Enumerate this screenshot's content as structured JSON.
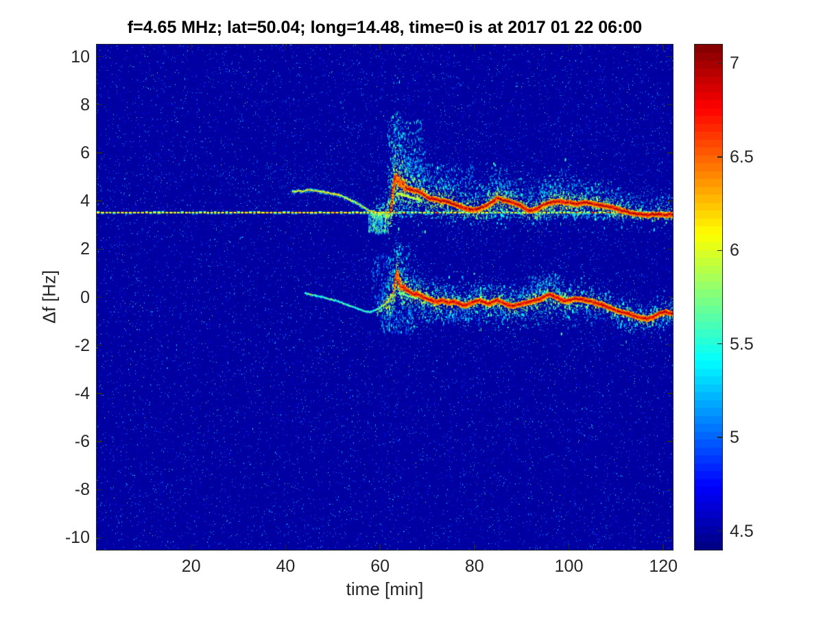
{
  "figure": {
    "background": "#ffffff",
    "axis_color": "#262626",
    "title_color": "#000000"
  },
  "chart_data": {
    "type": "heatmap",
    "subtype": "doppler-spectrogram",
    "title": "f=4.65 MHz;  lat=50.04; long=14.48, time=0 is at 2017 01 22 06:00",
    "xlabel": "time [min]",
    "ylabel": "Δf [Hz]",
    "xlim": [
      0,
      122
    ],
    "ylim": [
      -10.5,
      10.5
    ],
    "x_ticks": [
      20,
      40,
      60,
      80,
      100,
      120
    ],
    "y_ticks": [
      10,
      8,
      6,
      4,
      2,
      0,
      -2,
      -4,
      -6,
      -8,
      -10
    ],
    "colormap": "jet",
    "clim": [
      4.4,
      7.1
    ],
    "colorbar_ticks": [
      7,
      6.5,
      6,
      5.5,
      5,
      4.5
    ],
    "colorbar_position": "right",
    "noise_floor": 4.5,
    "reference_line": {
      "delta_f_hz": 3.52,
      "style": "dashed",
      "value": 6.05
    },
    "upper_trace_pre": [
      [
        41.3,
        4.38
      ],
      [
        42.5,
        4.42
      ],
      [
        43.5,
        4.4
      ],
      [
        44.5,
        4.47
      ],
      [
        45.5,
        4.44
      ],
      [
        46.5,
        4.42
      ],
      [
        47.5,
        4.38
      ],
      [
        48.5,
        4.35
      ],
      [
        49.5,
        4.31
      ],
      [
        50.5,
        4.28
      ],
      [
        51.5,
        4.23
      ],
      [
        52.5,
        4.14
      ],
      [
        53.5,
        4.04
      ],
      [
        54.5,
        3.96
      ],
      [
        55.5,
        3.86
      ],
      [
        56.5,
        3.73
      ],
      [
        57.5,
        3.61
      ],
      [
        58.7,
        3.55
      ]
    ],
    "upper_trace": [
      [
        62.2,
        3.6
      ],
      [
        62.6,
        4.3
      ],
      [
        63.0,
        4.9
      ],
      [
        63.3,
        5.05
      ],
      [
        63.6,
        4.8
      ],
      [
        64.0,
        4.88
      ],
      [
        64.4,
        4.68
      ],
      [
        64.8,
        4.72
      ],
      [
        65.2,
        4.6
      ],
      [
        65.8,
        4.52
      ],
      [
        66.5,
        4.47
      ],
      [
        67.2,
        4.44
      ],
      [
        68.0,
        4.42
      ],
      [
        68.8,
        4.33
      ],
      [
        69.6,
        4.22
      ],
      [
        70.4,
        4.12
      ],
      [
        71.2,
        4.1
      ],
      [
        72.0,
        4.08
      ],
      [
        72.8,
        4.0
      ],
      [
        73.6,
        4.0
      ],
      [
        74.4,
        3.97
      ],
      [
        75.2,
        3.91
      ],
      [
        76.0,
        3.85
      ],
      [
        77.0,
        3.77
      ],
      [
        78.0,
        3.7
      ],
      [
        78.8,
        3.66
      ],
      [
        79.6,
        3.64
      ],
      [
        80.5,
        3.66
      ],
      [
        81.5,
        3.72
      ],
      [
        82.5,
        3.8
      ],
      [
        83.5,
        3.92
      ],
      [
        84.4,
        4.03
      ],
      [
        84.9,
        4.14
      ],
      [
        85.4,
        4.08
      ],
      [
        86.2,
        4.03
      ],
      [
        87.3,
        3.99
      ],
      [
        88.2,
        3.93
      ],
      [
        89.2,
        3.86
      ],
      [
        90.2,
        3.76
      ],
      [
        91.0,
        3.66
      ],
      [
        91.7,
        3.6
      ],
      [
        92.5,
        3.63
      ],
      [
        93.2,
        3.66
      ],
      [
        94.0,
        3.76
      ],
      [
        94.6,
        3.85
      ],
      [
        95.4,
        3.9
      ],
      [
        96.1,
        3.94
      ],
      [
        97.0,
        3.97
      ],
      [
        98.0,
        4.0
      ],
      [
        99.0,
        3.95
      ],
      [
        100.0,
        3.94
      ],
      [
        101.0,
        3.9
      ],
      [
        101.9,
        3.89
      ],
      [
        102.9,
        3.93
      ],
      [
        103.8,
        3.94
      ],
      [
        104.8,
        3.9
      ],
      [
        105.8,
        3.85
      ],
      [
        106.8,
        3.82
      ],
      [
        107.7,
        3.8
      ],
      [
        108.6,
        3.76
      ],
      [
        109.6,
        3.71
      ],
      [
        110.6,
        3.65
      ],
      [
        111.6,
        3.6
      ],
      [
        112.3,
        3.56
      ],
      [
        113.0,
        3.52
      ],
      [
        114.0,
        3.48
      ],
      [
        115.0,
        3.46
      ],
      [
        116.0,
        3.43
      ],
      [
        116.9,
        3.43
      ],
      [
        117.8,
        3.46
      ],
      [
        118.5,
        3.43
      ],
      [
        119.3,
        3.47
      ],
      [
        120.0,
        3.42
      ],
      [
        120.8,
        3.43
      ],
      [
        121.4,
        3.46
      ],
      [
        121.9,
        3.42
      ]
    ],
    "lower_trace_pre": [
      [
        44.0,
        0.18
      ],
      [
        45.0,
        0.12
      ],
      [
        46.0,
        0.08
      ],
      [
        47.2,
        0.02
      ],
      [
        48.5,
        -0.04
      ],
      [
        49.5,
        -0.09
      ],
      [
        50.5,
        -0.14
      ],
      [
        51.5,
        -0.21
      ],
      [
        52.4,
        -0.28
      ],
      [
        53.4,
        -0.35
      ],
      [
        54.4,
        -0.42
      ],
      [
        55.4,
        -0.5
      ],
      [
        56.3,
        -0.57
      ],
      [
        57.0,
        -0.6
      ],
      [
        57.8,
        -0.62
      ],
      [
        58.5,
        -0.58
      ],
      [
        59.2,
        -0.52
      ],
      [
        59.9,
        -0.44
      ],
      [
        60.5,
        -0.35
      ],
      [
        61.1,
        -0.26
      ],
      [
        61.6,
        -0.15
      ],
      [
        62.1,
        -0.02
      ],
      [
        62.6,
        0.15
      ],
      [
        63.0,
        0.35
      ]
    ],
    "lower_trace": [
      [
        63.1,
        0.5
      ],
      [
        63.5,
        1.08
      ],
      [
        63.8,
        0.78
      ],
      [
        64.2,
        0.52
      ],
      [
        64.6,
        0.4
      ],
      [
        65.0,
        0.44
      ],
      [
        65.5,
        0.32
      ],
      [
        66.0,
        0.28
      ],
      [
        66.6,
        0.2
      ],
      [
        67.2,
        0.12
      ],
      [
        67.8,
        0.16
      ],
      [
        68.4,
        0.1
      ],
      [
        69.0,
        0.02
      ],
      [
        69.8,
        -0.04
      ],
      [
        70.6,
        -0.1
      ],
      [
        71.4,
        -0.16
      ],
      [
        72.2,
        -0.2
      ],
      [
        73.0,
        -0.12
      ],
      [
        73.8,
        -0.17
      ],
      [
        74.6,
        -0.22
      ],
      [
        75.4,
        -0.18
      ],
      [
        76.2,
        -0.23
      ],
      [
        77.0,
        -0.28
      ],
      [
        78.0,
        -0.34
      ],
      [
        79.0,
        -0.26
      ],
      [
        80.0,
        -0.18
      ],
      [
        81.0,
        -0.13
      ],
      [
        82.0,
        -0.21
      ],
      [
        83.0,
        -0.27
      ],
      [
        84.0,
        -0.18
      ],
      [
        85.0,
        -0.12
      ],
      [
        86.0,
        -0.22
      ],
      [
        87.0,
        -0.32
      ],
      [
        88.0,
        -0.37
      ],
      [
        89.0,
        -0.31
      ],
      [
        90.0,
        -0.27
      ],
      [
        91.0,
        -0.22
      ],
      [
        92.0,
        -0.17
      ],
      [
        93.0,
        -0.12
      ],
      [
        94.0,
        -0.07
      ],
      [
        95.0,
        0.04
      ],
      [
        96.0,
        0.12
      ],
      [
        96.8,
        0.05
      ],
      [
        97.6,
        -0.02
      ],
      [
        98.4,
        -0.1
      ],
      [
        99.2,
        -0.16
      ],
      [
        100.0,
        -0.12
      ],
      [
        101.0,
        -0.08
      ],
      [
        102.0,
        -0.06
      ],
      [
        103.0,
        -0.1
      ],
      [
        104.0,
        -0.15
      ],
      [
        105.0,
        -0.2
      ],
      [
        106.0,
        -0.26
      ],
      [
        107.0,
        -0.3
      ],
      [
        108.0,
        -0.39
      ],
      [
        109.0,
        -0.47
      ],
      [
        110.0,
        -0.55
      ],
      [
        111.0,
        -0.6
      ],
      [
        112.0,
        -0.65
      ],
      [
        113.0,
        -0.71
      ],
      [
        114.0,
        -0.78
      ],
      [
        115.0,
        -0.84
      ],
      [
        116.0,
        -0.88
      ],
      [
        116.6,
        -0.9
      ],
      [
        117.4,
        -0.86
      ],
      [
        118.2,
        -0.78
      ],
      [
        119.0,
        -0.7
      ],
      [
        119.8,
        -0.63
      ],
      [
        120.6,
        -0.6
      ],
      [
        121.2,
        -0.64
      ],
      [
        121.9,
        -0.67
      ]
    ],
    "upper_secondary": [
      [
        63.5,
        4.35
      ],
      [
        64.5,
        4.28
      ],
      [
        65.5,
        4.22
      ],
      [
        66.5,
        4.17
      ],
      [
        67.5,
        4.12
      ],
      [
        68.5,
        4.08
      ]
    ],
    "lower_secondary": [
      [
        63.8,
        0.2
      ],
      [
        64.8,
        0.16
      ],
      [
        65.8,
        0.08
      ],
      [
        66.8,
        0.02
      ],
      [
        67.8,
        -0.04
      ]
    ],
    "upper_spread": [
      [
        58,
        0.15
      ],
      [
        61,
        0.35
      ],
      [
        62,
        1.3
      ],
      [
        63,
        2.2
      ],
      [
        63.5,
        2.4
      ],
      [
        64,
        1.8
      ],
      [
        65,
        1.1
      ],
      [
        67,
        0.9
      ],
      [
        70,
        0.75
      ],
      [
        75,
        0.6
      ],
      [
        80,
        0.55
      ],
      [
        84,
        0.65
      ],
      [
        87,
        0.6
      ],
      [
        90,
        0.5
      ],
      [
        95,
        0.6
      ],
      [
        100,
        0.55
      ],
      [
        104,
        0.5
      ],
      [
        110,
        0.45
      ],
      [
        115,
        0.4
      ],
      [
        122,
        0.38
      ]
    ],
    "upper_density": [
      [
        58,
        2
      ],
      [
        61,
        5
      ],
      [
        62,
        16
      ],
      [
        63,
        22
      ],
      [
        63.5,
        24
      ],
      [
        64,
        18
      ],
      [
        65,
        13
      ],
      [
        67,
        10
      ],
      [
        70,
        8
      ],
      [
        75,
        6
      ],
      [
        80,
        6
      ],
      [
        84,
        9
      ],
      [
        87,
        8
      ],
      [
        90,
        6
      ],
      [
        95,
        8
      ],
      [
        100,
        8
      ],
      [
        103,
        7
      ],
      [
        107,
        6
      ],
      [
        110,
        5
      ],
      [
        115,
        4
      ],
      [
        122,
        4
      ]
    ],
    "lower_spread": [
      [
        59,
        0.15
      ],
      [
        61,
        0.4
      ],
      [
        62,
        0.9
      ],
      [
        63,
        1.1
      ],
      [
        63.5,
        1.2
      ],
      [
        64,
        1.0
      ],
      [
        65,
        0.8
      ],
      [
        67,
        0.6
      ],
      [
        70,
        0.5
      ],
      [
        75,
        0.45
      ],
      [
        80,
        0.42
      ],
      [
        85,
        0.45
      ],
      [
        90,
        0.42
      ],
      [
        95,
        0.55
      ],
      [
        100,
        0.45
      ],
      [
        105,
        0.4
      ],
      [
        110,
        0.38
      ],
      [
        115,
        0.36
      ],
      [
        122,
        0.32
      ]
    ],
    "lower_density": [
      [
        59,
        1
      ],
      [
        61,
        4
      ],
      [
        62,
        12
      ],
      [
        63,
        16
      ],
      [
        64,
        13
      ],
      [
        65,
        10
      ],
      [
        67,
        8
      ],
      [
        70,
        6
      ],
      [
        75,
        5
      ],
      [
        80,
        5
      ],
      [
        84,
        6
      ],
      [
        90,
        5
      ],
      [
        95,
        6
      ],
      [
        100,
        5
      ],
      [
        105,
        4
      ],
      [
        110,
        4
      ],
      [
        122,
        4
      ]
    ],
    "burst": {
      "t_start": 61.5,
      "t_peak": 63.3,
      "t_end": 65.5,
      "f_max_upper": 7.6,
      "f_max_lower": 2.2
    },
    "clouds": [
      {
        "t0": 28,
        "t1": 58,
        "f0": 3.8,
        "f1": 5.6,
        "n": 220,
        "v0": 4.9,
        "v1": 5.4,
        "streak": 0
      },
      {
        "t0": 57.5,
        "t1": 61.8,
        "f0": 2.7,
        "f1": 3.5,
        "n": 300,
        "v0": 5.0,
        "v1": 5.9,
        "streak": 1
      },
      {
        "t0": 60,
        "t1": 67,
        "f0": -1.45,
        "f1": -0.5,
        "n": 160,
        "v0": 4.9,
        "v1": 5.5,
        "streak": 1
      },
      {
        "t0": 61.5,
        "t1": 69,
        "f0": 5.2,
        "f1": 7.4,
        "n": 220,
        "v0": 4.9,
        "v1": 5.6,
        "streak": 1
      },
      {
        "t0": 58,
        "t1": 62.5,
        "f0": -0.3,
        "f1": 1.9,
        "n": 130,
        "v0": 4.9,
        "v1": 5.4,
        "streak": 1
      },
      {
        "t0": 74,
        "t1": 79,
        "f0": -1.0,
        "f1": -0.45,
        "n": 60,
        "v0": 4.9,
        "v1": 5.3,
        "streak": 1
      },
      {
        "t0": 92,
        "t1": 98,
        "f0": 0.2,
        "f1": 1.0,
        "n": 90,
        "v0": 5.0,
        "v1": 5.5,
        "streak": 1
      },
      {
        "t0": 66,
        "t1": 80,
        "f0": 4.6,
        "f1": 5.6,
        "n": 150,
        "v0": 4.9,
        "v1": 5.4,
        "streak": 1
      },
      {
        "t0": 80,
        "t1": 105,
        "f0": 4.3,
        "f1": 5.2,
        "n": 140,
        "v0": 4.9,
        "v1": 5.3,
        "streak": 0
      },
      {
        "t0": 105,
        "t1": 122,
        "f0": 3.8,
        "f1": 4.6,
        "n": 90,
        "v0": 4.9,
        "v1": 5.3,
        "streak": 0
      },
      {
        "t0": 63,
        "t1": 122,
        "f0": 5.0,
        "f1": 7.2,
        "n": 250,
        "v0": 4.75,
        "v1": 5.05,
        "streak": 0
      },
      {
        "t0": 67,
        "t1": 122,
        "f0": -1.5,
        "f1": -0.55,
        "n": 150,
        "v0": 4.75,
        "v1": 5.05,
        "streak": 0
      }
    ]
  }
}
